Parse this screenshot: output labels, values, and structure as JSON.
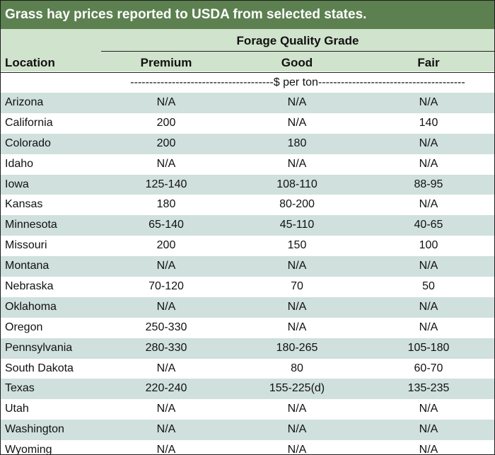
{
  "title": "Grass hay prices reported to USDA from selected states.",
  "group_header": "Forage Quality Grade",
  "columns": {
    "location": "Location",
    "premium": "Premium",
    "good": "Good",
    "fair": "Fair"
  },
  "units_row": "--------------------------------------$ per ton---------------------------------------",
  "rows": [
    {
      "location": "Arizona",
      "premium": "N/A",
      "good": "N/A",
      "fair": "N/A"
    },
    {
      "location": "California",
      "premium": "200",
      "good": "N/A",
      "fair": "140"
    },
    {
      "location": "Colorado",
      "premium": "200",
      "good": "180",
      "fair": "N/A"
    },
    {
      "location": "Idaho",
      "premium": "N/A",
      "good": "N/A",
      "fair": "N/A"
    },
    {
      "location": "Iowa",
      "premium": "125-140",
      "good": "108-110",
      "fair": "88-95"
    },
    {
      "location": "Kansas",
      "premium": "180",
      "good": "80-200",
      "fair": "N/A"
    },
    {
      "location": "Minnesota",
      "premium": "65-140",
      "good": "45-110",
      "fair": "40-65"
    },
    {
      "location": "Missouri",
      "premium": "200",
      "good": "150",
      "fair": "100"
    },
    {
      "location": "Montana",
      "premium": "N/A",
      "good": "N/A",
      "fair": "N/A"
    },
    {
      "location": "Nebraska",
      "premium": "70-120",
      "good": "70",
      "fair": "50"
    },
    {
      "location": "Oklahoma",
      "premium": "N/A",
      "good": "N/A",
      "fair": "N/A"
    },
    {
      "location": "Oregon",
      "premium": "250-330",
      "good": "N/A",
      "fair": "N/A"
    },
    {
      "location": "Pennsylvania",
      "premium": "280-330",
      "good": "180-265",
      "fair": "105-180"
    },
    {
      "location": "South Dakota",
      "premium": "N/A",
      "good": "80",
      "fair": "60-70"
    },
    {
      "location": "Texas",
      "premium": "220-240",
      "good": "155-225(d)",
      "fair": "135-235"
    },
    {
      "location": "Utah",
      "premium": "N/A",
      "good": "N/A",
      "fair": "N/A"
    },
    {
      "location": "Washington",
      "premium": "N/A",
      "good": "N/A",
      "fair": "N/A"
    },
    {
      "location": "Wyoming",
      "premium": "N/A",
      "good": "N/A",
      "fair": "N/A"
    }
  ],
  "colors": {
    "title_bg": "#5c8050",
    "header_bg": "#d0e3cc",
    "alt_row_bg": "#cfe0dd"
  }
}
